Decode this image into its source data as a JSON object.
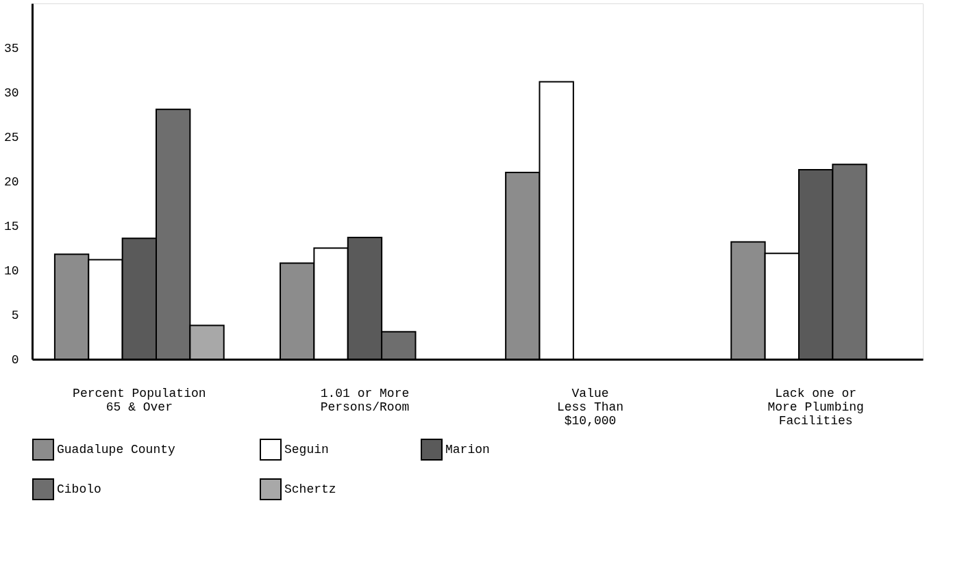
{
  "chart_data": {
    "type": "bar",
    "categories": [
      "Percent Population\n65 & Over",
      "1.01 or More\nPersons/Room",
      "Value\nLess Than\n$10,000",
      "Lack one or\nMore Plumbing\nFacilities"
    ],
    "series": [
      {
        "name": "Guadalupe County",
        "color": "#8c8c8c",
        "values": [
          11.8,
          10.8,
          21.0,
          13.2
        ]
      },
      {
        "name": "Seguin",
        "color": "#ffffff",
        "values": [
          11.2,
          12.5,
          31.2,
          11.9
        ]
      },
      {
        "name": "Marion",
        "color": "#5a5a5a",
        "values": [
          13.6,
          13.7,
          null,
          21.3
        ]
      },
      {
        "name": "Cibolo",
        "color": "#6e6e6e",
        "values": [
          28.1,
          3.1,
          null,
          21.9
        ]
      },
      {
        "name": "Schertz",
        "color": "#a8a8a8",
        "values": [
          3.8,
          null,
          null,
          null
        ]
      }
    ],
    "ylim": [
      0,
      40
    ],
    "yticks": [
      0,
      5,
      10,
      15,
      20,
      25,
      30,
      35
    ],
    "grid": false,
    "legend": "bottom"
  }
}
